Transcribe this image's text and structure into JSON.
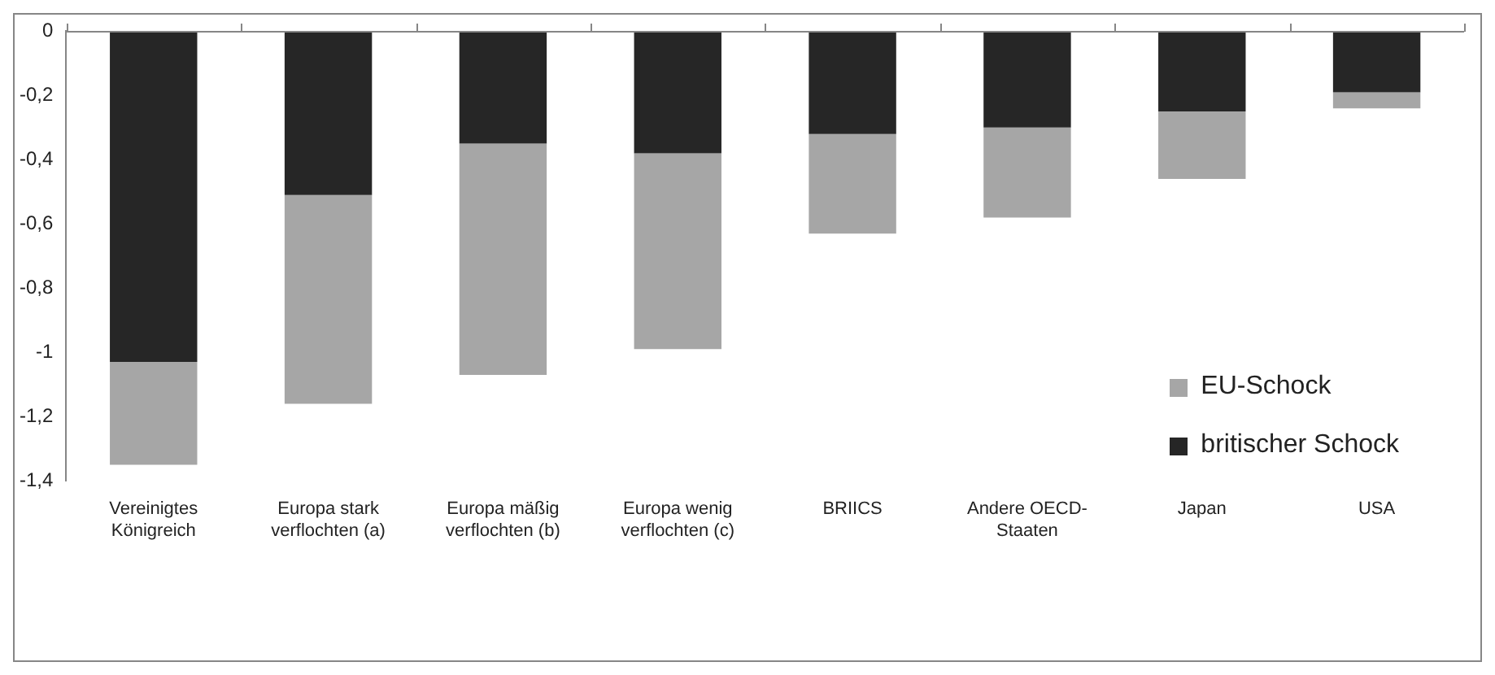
{
  "chart_data": {
    "type": "bar",
    "stacked": true,
    "categories": [
      "Vereinigtes Königreich",
      "Europa stark verflochten (a)",
      "Europa mäßig verflochten (b)",
      "Europa wenig verflochten (c)",
      "BRIICS",
      "Andere OECD-Staaten",
      "Japan",
      "USA"
    ],
    "series": [
      {
        "name": "britischer Schock",
        "color": "#262626",
        "values": [
          -1.03,
          -0.51,
          -0.35,
          -0.38,
          -0.32,
          -0.3,
          -0.25,
          -0.19
        ]
      },
      {
        "name": "EU-Schock",
        "color": "#a6a6a6",
        "values": [
          -0.32,
          -0.65,
          -0.72,
          -0.61,
          -0.31,
          -0.28,
          -0.21,
          -0.05
        ]
      }
    ],
    "ylim": [
      -1.4,
      0
    ],
    "yticks": [
      {
        "value": 0,
        "label": "0"
      },
      {
        "value": -0.2,
        "label": "-0,2"
      },
      {
        "value": -0.4,
        "label": "-0,4"
      },
      {
        "value": -0.6,
        "label": "-0,6"
      },
      {
        "value": -0.8,
        "label": "-0,8"
      },
      {
        "value": -1,
        "label": "-1"
      },
      {
        "value": -1.2,
        "label": "-1,2"
      },
      {
        "value": -1.4,
        "label": "-1,4"
      }
    ],
    "grid": false,
    "legend": "right"
  }
}
